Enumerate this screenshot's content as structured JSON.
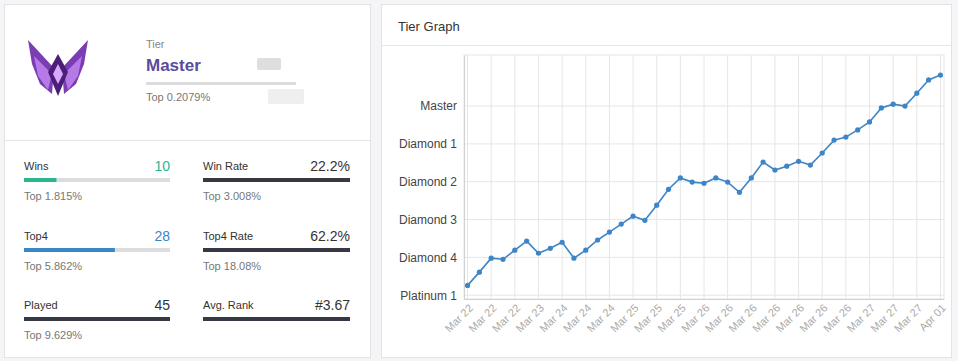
{
  "profile": {
    "tier_heading": "Tier",
    "tier": "Master",
    "percentile": "Top 0.2079%",
    "stats": [
      {
        "label": "Wins",
        "value": 10,
        "top": "Top 1.815%"
      },
      {
        "label": "Win Rate",
        "value": "22.2%",
        "top": "Top 3.008%"
      },
      {
        "label": "Top4",
        "value": 28,
        "top": "Top 5.862%"
      },
      {
        "label": "Top4 Rate",
        "value": "62.2%",
        "top": "Top 18.08%"
      },
      {
        "label": "Played",
        "value": 45,
        "top": "Top 9.629%"
      },
      {
        "label": "Avg. Rank",
        "value": "#3.67",
        "top": ""
      }
    ]
  },
  "chart_data": {
    "type": "line",
    "title": "Tier Graph",
    "categories": [
      "Mar 22",
      null,
      "Mar 22",
      null,
      "Mar 22",
      null,
      "Mar 23",
      null,
      "Mar 24",
      null,
      "Mar 24",
      null,
      "Mar 24",
      null,
      "Mar 25",
      null,
      "Mar 25",
      null,
      "Mar 25",
      null,
      "Mar 26",
      null,
      "Mar 26",
      null,
      "Mar 26",
      null,
      "Mar 26",
      null,
      "Mar 26",
      null,
      "Mar 26",
      null,
      "Mar 26",
      null,
      "Mar 27",
      null,
      "Mar 27",
      null,
      "Mar 27",
      null,
      "Apr 01"
    ],
    "values": [
      0.26,
      0.61,
      0.98,
      0.95,
      1.19,
      1.43,
      1.11,
      1.24,
      1.4,
      0.98,
      1.19,
      1.46,
      1.67,
      1.88,
      2.09,
      1.98,
      2.38,
      2.8,
      3.1,
      2.99,
      2.96,
      3.1,
      2.99,
      2.72,
      3.1,
      3.52,
      3.31,
      3.41,
      3.54,
      3.44,
      3.76,
      4.1,
      4.18,
      4.37,
      4.58,
      4.95,
      5.05,
      5.0,
      5.34,
      5.69,
      5.82
    ],
    "color": "#3d85c6",
    "marker": "circle",
    "ylim": [
      -0.1,
      6.35
    ],
    "yticks": [
      {
        "value": 0,
        "label": "Platinum 1"
      },
      {
        "value": 1,
        "label": "Diamond 4"
      },
      {
        "value": 2,
        "label": "Diamond 3"
      },
      {
        "value": 3,
        "label": "Diamond 2"
      },
      {
        "value": 4,
        "label": "Diamond 1"
      },
      {
        "value": 5,
        "label": "Master"
      }
    ],
    "grid": true
  }
}
